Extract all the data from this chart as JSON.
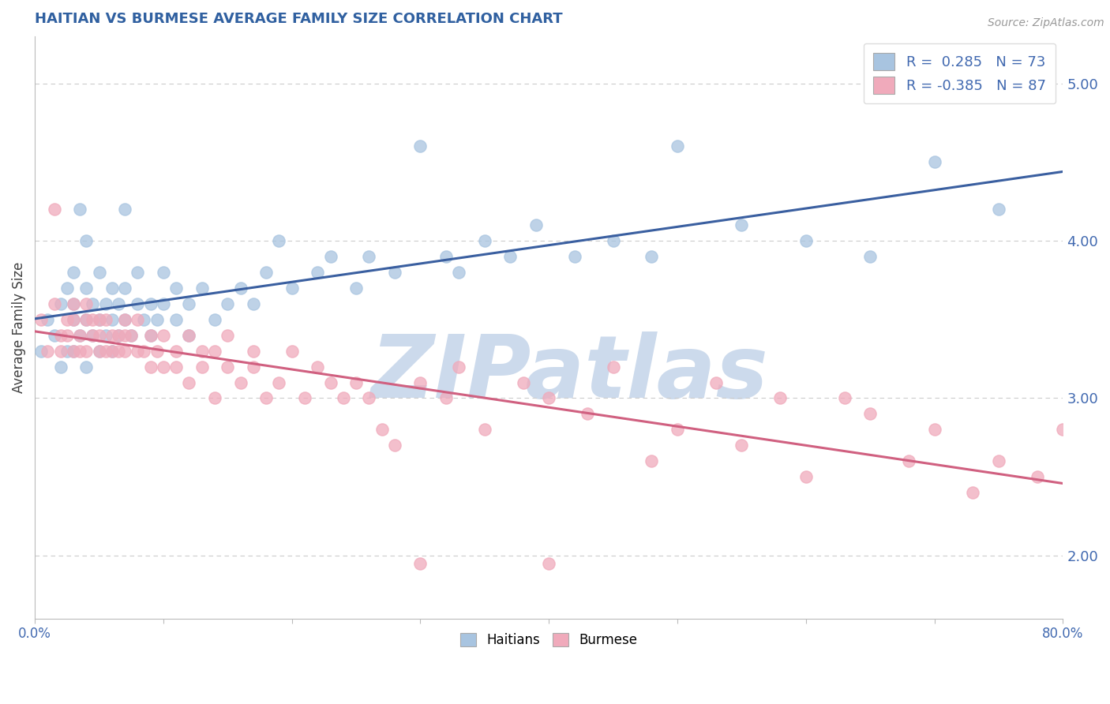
{
  "title": "HAITIAN VS BURMESE AVERAGE FAMILY SIZE CORRELATION CHART",
  "source": "Source: ZipAtlas.com",
  "ylabel": "Average Family Size",
  "xlim": [
    0.0,
    0.8
  ],
  "ylim": [
    1.6,
    5.3
  ],
  "yticks_right": [
    2.0,
    3.0,
    4.0,
    5.0
  ],
  "xticks": [
    0.0,
    0.1,
    0.2,
    0.3,
    0.4,
    0.5,
    0.6,
    0.7,
    0.8
  ],
  "xtick_labels": [
    "0.0%",
    "",
    "",
    "",
    "",
    "",
    "",
    "",
    "80.0%"
  ],
  "legend_label1": "Haitians",
  "legend_label2": "Burmese",
  "R1": 0.285,
  "N1": 73,
  "R2": -0.385,
  "N2": 87,
  "blue_color": "#a8c4e0",
  "pink_color": "#f0aabb",
  "blue_line_color": "#3a5fa0",
  "pink_line_color": "#d06080",
  "title_color": "#3060a0",
  "axis_label_color": "#404040",
  "right_tick_color": "#4169b0",
  "watermark_color": "#ccdaec",
  "grid_color": "#cccccc",
  "background_color": "#ffffff",
  "haitians_x": [
    0.005,
    0.01,
    0.015,
    0.02,
    0.02,
    0.025,
    0.025,
    0.03,
    0.03,
    0.03,
    0.03,
    0.035,
    0.035,
    0.04,
    0.04,
    0.04,
    0.04,
    0.045,
    0.045,
    0.05,
    0.05,
    0.05,
    0.055,
    0.055,
    0.06,
    0.06,
    0.06,
    0.065,
    0.065,
    0.07,
    0.07,
    0.07,
    0.075,
    0.08,
    0.08,
    0.085,
    0.09,
    0.09,
    0.095,
    0.1,
    0.1,
    0.11,
    0.11,
    0.12,
    0.12,
    0.13,
    0.14,
    0.15,
    0.16,
    0.17,
    0.18,
    0.19,
    0.2,
    0.22,
    0.23,
    0.25,
    0.26,
    0.28,
    0.3,
    0.32,
    0.33,
    0.35,
    0.37,
    0.39,
    0.42,
    0.45,
    0.48,
    0.5,
    0.55,
    0.6,
    0.65,
    0.7,
    0.75
  ],
  "haitians_y": [
    3.3,
    3.5,
    3.4,
    3.6,
    3.2,
    3.7,
    3.3,
    3.5,
    3.8,
    3.3,
    3.6,
    4.2,
    3.4,
    3.2,
    3.5,
    3.7,
    4.0,
    3.4,
    3.6,
    3.3,
    3.5,
    3.8,
    3.4,
    3.6,
    3.3,
    3.5,
    3.7,
    3.4,
    3.6,
    3.5,
    3.7,
    4.2,
    3.4,
    3.6,
    3.8,
    3.5,
    3.4,
    3.6,
    3.5,
    3.6,
    3.8,
    3.5,
    3.7,
    3.6,
    3.4,
    3.7,
    3.5,
    3.6,
    3.7,
    3.6,
    3.8,
    4.0,
    3.7,
    3.8,
    3.9,
    3.7,
    3.9,
    3.8,
    4.6,
    3.9,
    3.8,
    4.0,
    3.9,
    4.1,
    3.9,
    4.0,
    3.9,
    4.6,
    4.1,
    4.0,
    3.9,
    4.5,
    4.2
  ],
  "burmese_x": [
    0.005,
    0.01,
    0.015,
    0.015,
    0.02,
    0.02,
    0.025,
    0.025,
    0.03,
    0.03,
    0.03,
    0.035,
    0.035,
    0.04,
    0.04,
    0.04,
    0.045,
    0.045,
    0.05,
    0.05,
    0.05,
    0.055,
    0.055,
    0.06,
    0.06,
    0.065,
    0.065,
    0.07,
    0.07,
    0.07,
    0.075,
    0.08,
    0.08,
    0.085,
    0.09,
    0.09,
    0.095,
    0.1,
    0.1,
    0.11,
    0.11,
    0.12,
    0.12,
    0.13,
    0.13,
    0.14,
    0.14,
    0.15,
    0.15,
    0.16,
    0.17,
    0.17,
    0.18,
    0.19,
    0.2,
    0.21,
    0.22,
    0.23,
    0.24,
    0.25,
    0.26,
    0.27,
    0.28,
    0.3,
    0.32,
    0.33,
    0.35,
    0.38,
    0.4,
    0.43,
    0.45,
    0.48,
    0.5,
    0.53,
    0.55,
    0.58,
    0.6,
    0.63,
    0.65,
    0.68,
    0.7,
    0.73,
    0.75,
    0.78,
    0.8,
    0.4,
    0.3
  ],
  "burmese_y": [
    3.5,
    3.3,
    3.6,
    4.2,
    3.4,
    3.3,
    3.5,
    3.4,
    3.3,
    3.5,
    3.6,
    3.4,
    3.3,
    3.5,
    3.3,
    3.6,
    3.4,
    3.5,
    3.3,
    3.5,
    3.4,
    3.3,
    3.5,
    3.4,
    3.3,
    3.4,
    3.3,
    3.4,
    3.3,
    3.5,
    3.4,
    3.3,
    3.5,
    3.3,
    3.4,
    3.2,
    3.3,
    3.2,
    3.4,
    3.2,
    3.3,
    3.4,
    3.1,
    3.3,
    3.2,
    3.0,
    3.3,
    3.2,
    3.4,
    3.1,
    3.3,
    3.2,
    3.0,
    3.1,
    3.3,
    3.0,
    3.2,
    3.1,
    3.0,
    3.1,
    3.0,
    2.8,
    2.7,
    3.1,
    3.0,
    3.2,
    2.8,
    3.1,
    3.0,
    2.9,
    3.2,
    2.6,
    2.8,
    3.1,
    2.7,
    3.0,
    2.5,
    3.0,
    2.9,
    2.6,
    2.8,
    2.4,
    2.6,
    2.5,
    2.8,
    1.95,
    1.95
  ]
}
